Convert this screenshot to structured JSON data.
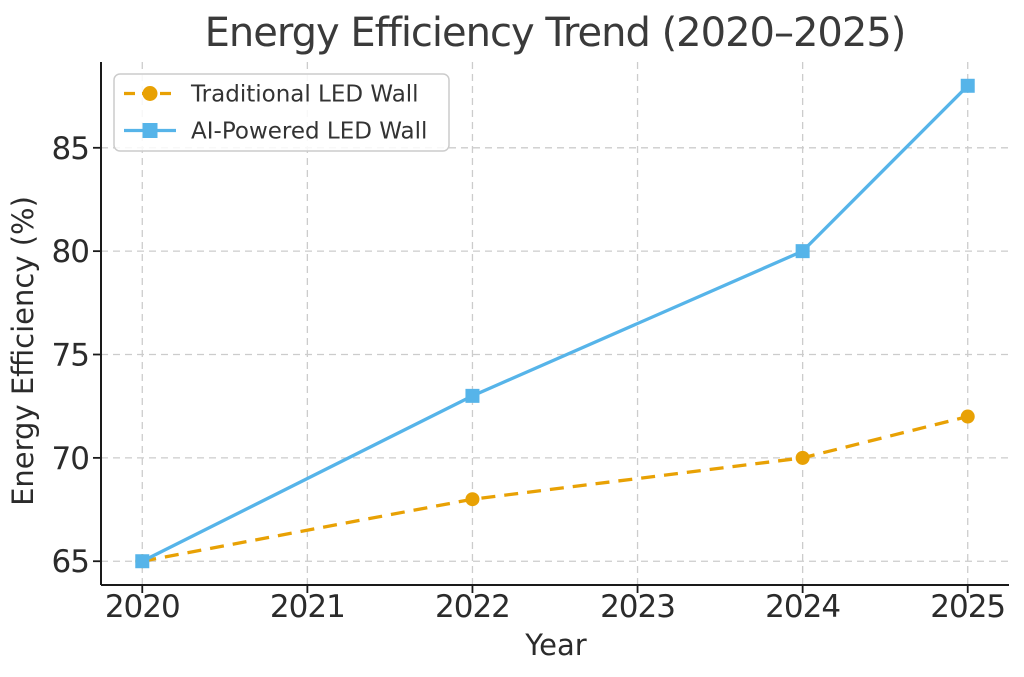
{
  "chart_data": {
    "type": "line",
    "title": "Energy Efficiency Trend (2020–2025)",
    "xlabel": "Year",
    "ylabel": "Energy Efficiency (%)",
    "x": [
      2020,
      2022,
      2024,
      2025
    ],
    "series": [
      {
        "name": "Traditional LED Wall",
        "values": [
          65,
          68,
          70,
          72
        ],
        "color": "#E8A104",
        "line_style": "dashed",
        "marker": "circle"
      },
      {
        "name": "AI-Powered LED Wall",
        "values": [
          65,
          73,
          80,
          88
        ],
        "color": "#56B4E9",
        "line_style": "solid",
        "marker": "square"
      }
    ],
    "x_ticks": [
      2020,
      2021,
      2022,
      2023,
      2024,
      2025
    ],
    "y_ticks": [
      65,
      70,
      75,
      80,
      85
    ],
    "xlim": [
      2019.75,
      2025.25
    ],
    "ylim": [
      63.85,
      89.15
    ],
    "grid": true,
    "grid_style": "dashed",
    "legend_position": "upper left",
    "style": {
      "background": "#ffffff",
      "grid_color": "#cccccc",
      "axis_color": "#1a1a1a",
      "text_color": "#2b2b2b",
      "title_color": "#3a3a3a",
      "legend_border_color": "#cccccc"
    }
  }
}
